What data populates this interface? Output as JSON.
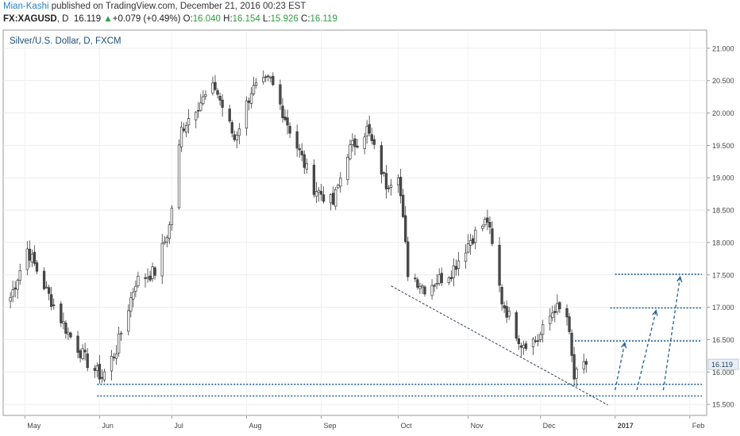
{
  "header": {
    "author": "Mian-Kashi",
    "published": " published on TradingView.com, December 21, 2016 00:23 EST",
    "symbol": "FX:XAGUSD",
    "interval": ", D",
    "last": "16.119",
    "change_arrow": "▲",
    "change": "+0.079 (+0.49%)",
    "o_label": "O:",
    "o_val": "16.040",
    "h_label": "H:",
    "h_val": "16.154",
    "l_label": "L:",
    "l_val": "15.926",
    "c_label": "C:",
    "c_val": "16.119"
  },
  "chart_data": {
    "type": "candlestick",
    "title": "Silver/U.S. Dollar, D, FXCM",
    "x_ticks": [
      "May",
      "Jun",
      "Jul",
      "Aug",
      "Sep",
      "Oct",
      "Nov",
      "Dec",
      "2017",
      "Feb"
    ],
    "y_ticks": [
      "15.500",
      "16.000",
      "16.500",
      "17.000",
      "17.500",
      "18.000",
      "18.500",
      "19.000",
      "19.500",
      "20.000",
      "20.500",
      "21.000"
    ],
    "ylim": [
      15.33,
      21.28
    ],
    "last_price_label": "16.119",
    "last_price": 16.119,
    "anchors": [
      [
        "2016-04-25",
        17.15
      ],
      [
        "2016-05-02",
        17.9
      ],
      [
        "2016-05-10",
        17.25
      ],
      [
        "2016-05-19",
        16.6
      ],
      [
        "2016-05-27",
        16.15
      ],
      [
        "2016-06-02",
        15.92
      ],
      [
        "2016-06-08",
        16.35
      ],
      [
        "2016-06-16",
        17.4
      ],
      [
        "2016-06-24",
        17.55
      ],
      [
        "2016-06-30",
        18.25
      ],
      [
        "2016-07-05",
        19.75
      ],
      [
        "2016-07-11",
        20.1
      ],
      [
        "2016-07-19",
        20.4
      ],
      [
        "2016-07-27",
        19.6
      ],
      [
        "2016-08-03",
        20.35
      ],
      [
        "2016-08-11",
        20.5
      ],
      [
        "2016-08-19",
        19.75
      ],
      [
        "2016-08-29",
        18.85
      ],
      [
        "2016-09-06",
        18.6
      ],
      [
        "2016-09-12",
        19.4
      ],
      [
        "2016-09-20",
        19.75
      ],
      [
        "2016-09-28",
        18.9
      ],
      [
        "2016-10-03",
        19.1
      ],
      [
        "2016-10-07",
        17.55
      ],
      [
        "2016-10-14",
        17.3
      ],
      [
        "2016-10-25",
        17.55
      ],
      [
        "2016-11-02",
        18.05
      ],
      [
        "2016-11-09",
        18.35
      ],
      [
        "2016-11-15",
        17.1
      ],
      [
        "2016-11-23",
        16.45
      ],
      [
        "2016-11-30",
        16.5
      ],
      [
        "2016-12-07",
        17.0
      ],
      [
        "2016-12-12",
        16.85
      ],
      [
        "2016-12-15",
        15.9
      ],
      [
        "2016-12-20",
        16.119
      ]
    ],
    "horizontal_levels": [
      {
        "y": 15.63,
        "x_from": "2016-05-31",
        "x_to": "2017-02-06"
      },
      {
        "y": 15.81,
        "x_from": "2016-05-31",
        "x_to": "2017-02-06"
      },
      {
        "y": 16.48,
        "x_from": "2016-12-14",
        "x_to": "2017-02-06"
      },
      {
        "y": 16.99,
        "x_from": "2016-12-30",
        "x_to": "2017-02-06"
      },
      {
        "y": 17.51,
        "x_from": "2017-01-01",
        "x_to": "2017-02-06"
      }
    ],
    "trendline": {
      "from": [
        "2016-09-30",
        17.33
      ],
      "to": [
        "2016-12-29",
        15.49
      ]
    },
    "projection_arrows": [
      {
        "from": [
          "2017-01-01",
          15.72
        ],
        "to": [
          "2017-01-05",
          16.45
        ]
      },
      {
        "from": [
          "2017-01-10",
          15.72
        ],
        "to": [
          "2017-01-18",
          16.95
        ]
      },
      {
        "from": [
          "2017-01-21",
          15.72
        ],
        "to": [
          "2017-01-28",
          17.47
        ]
      }
    ],
    "colors": {
      "candle_up": "#ffffff",
      "candle_down": "#4a4a4a",
      "candle_outline": "#3a3a3a",
      "level_line": "#1f5f99",
      "trendline": "#2f3f55",
      "axis_text": "#444444",
      "price_label_bg": "#e8eef5"
    }
  }
}
